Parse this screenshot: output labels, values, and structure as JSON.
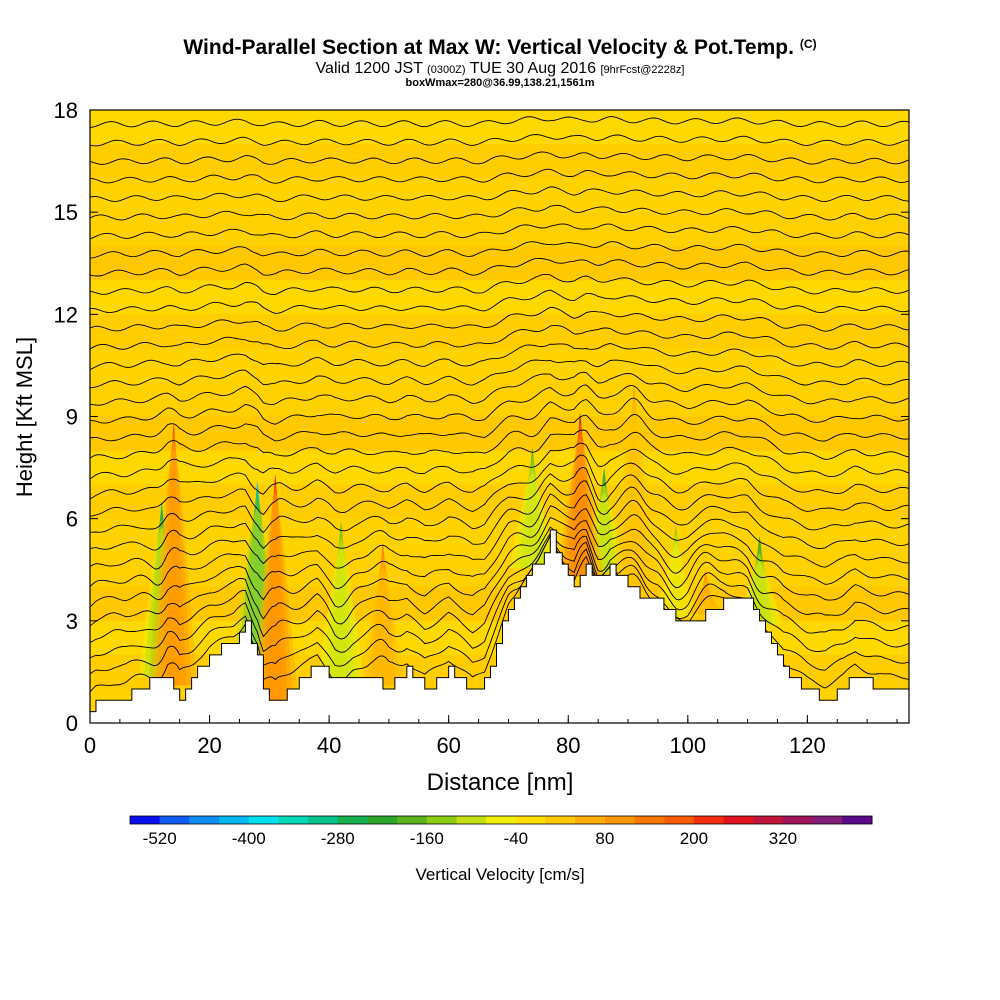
{
  "header": {
    "title": "Wind-Parallel Section at Max W: Vertical Velocity & Pot.Temp.",
    "title_mark": "(C)",
    "valid_prefix": "Valid 1200 JST",
    "valid_utc": "(0300Z)",
    "valid_date": "TUE 30 Aug 2016",
    "forecast_tag": "[9hrFcst@2228z]",
    "box_info": "boxWmax=280@36.99,138.21,1561m"
  },
  "colorbar": {
    "label": "Vertical Velocity [cm/s]",
    "tick_labels": [
      "-520",
      "-400",
      "-280",
      "-160",
      "-40",
      "80",
      "200",
      "320"
    ],
    "tick_values": [
      -520,
      -400,
      -280,
      -160,
      -40,
      80,
      200,
      320
    ],
    "colors": [
      "#0a0ff0",
      "#0f5cf5",
      "#0f8cf5",
      "#00b8f5",
      "#00e0ef",
      "#00d8b8",
      "#00c48c",
      "#16b050",
      "#2aa62a",
      "#5cb51e",
      "#8ccc14",
      "#c4e014",
      "#f0f00a",
      "#ffe000",
      "#ffc800",
      "#ffae00",
      "#ff9600",
      "#ff7800",
      "#ff5a00",
      "#f52d0a",
      "#e0141e",
      "#c0143c",
      "#a0145a",
      "#821e78",
      "#5a0a8c"
    ]
  },
  "chart_data": {
    "type": "heatmap",
    "title": "Wind-Parallel Section at Max W: Vertical Velocity & Pot.Temp.",
    "xlabel": "Distance [nm]",
    "ylabel": "Height [Kft MSL]",
    "xlim": [
      0,
      137
    ],
    "ylim": [
      0,
      18
    ],
    "x_ticks": [
      0,
      20,
      40,
      60,
      80,
      100,
      120
    ],
    "y_ticks": [
      0,
      3,
      6,
      9,
      12,
      15,
      18
    ],
    "field": "Vertical Velocity [cm/s]",
    "contours": "Potential Temperature [C]",
    "terrain": {
      "x": [
        0,
        1,
        4,
        6,
        10,
        13,
        15,
        18,
        20,
        24,
        26,
        28,
        29,
        31,
        33,
        36,
        38,
        41,
        44,
        47,
        50,
        53,
        56,
        60,
        64,
        66,
        70,
        73,
        75,
        77,
        78,
        80,
        81,
        83,
        85,
        87,
        90,
        93,
        95,
        98,
        100,
        103,
        106,
        110,
        113,
        116,
        120,
        123,
        126,
        128,
        130,
        133,
        137
      ],
      "height": [
        0.4,
        0.6,
        0.8,
        0.8,
        1.2,
        1.4,
        0.8,
        1.6,
        2.0,
        2.4,
        2.9,
        2.0,
        1.0,
        0.5,
        0.9,
        1.4,
        1.8,
        1.2,
        1.4,
        1.3,
        1.0,
        1.5,
        1.0,
        1.6,
        0.9,
        1.2,
        3.4,
        4.3,
        4.8,
        5.5,
        5.1,
        4.3,
        3.9,
        4.7,
        4.2,
        4.6,
        4.0,
        3.6,
        3.5,
        3.1,
        2.9,
        3.2,
        3.5,
        3.5,
        2.6,
        1.5,
        0.9,
        0.7,
        1.0,
        1.4,
        1.2,
        1.0,
        1.0
      ]
    },
    "updrafts": [
      {
        "x": 14,
        "top": 8.5,
        "max_cm_s": 220
      },
      {
        "x": 31,
        "top": 7.0,
        "max_cm_s": 260
      },
      {
        "x": 49,
        "top": 5.0,
        "max_cm_s": 120
      },
      {
        "x": 82,
        "top": 8.8,
        "max_cm_s": 280
      },
      {
        "x": 91,
        "top": 9.6,
        "max_cm_s": 80
      },
      {
        "x": 103,
        "top": 4.2,
        "max_cm_s": 100
      }
    ],
    "downdrafts": [
      {
        "x": 12,
        "top": 6.2,
        "min_cm_s": -300
      },
      {
        "x": 28,
        "top": 6.8,
        "min_cm_s": -430
      },
      {
        "x": 42,
        "top": 5.6,
        "min_cm_s": -200
      },
      {
        "x": 74,
        "top": 7.8,
        "min_cm_s": -200
      },
      {
        "x": 86,
        "top": 7.2,
        "min_cm_s": -240
      },
      {
        "x": 98,
        "top": 5.5,
        "min_cm_s": -160
      },
      {
        "x": 112,
        "top": 5.2,
        "min_cm_s": -240
      }
    ]
  }
}
